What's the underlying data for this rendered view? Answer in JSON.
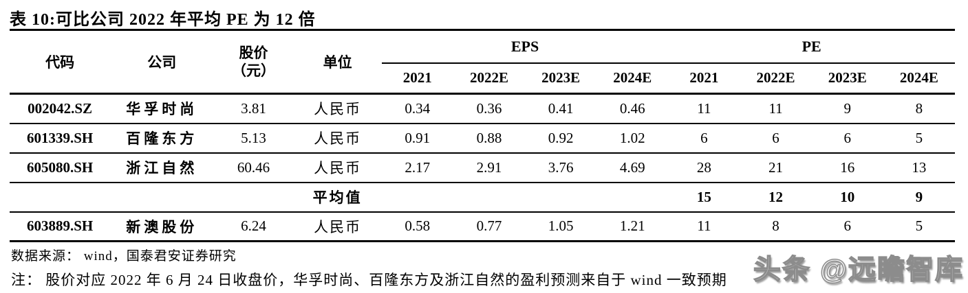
{
  "title": "表 10:可比公司 2022 年平均 PE 为 12 倍",
  "table": {
    "headers": {
      "code": "代码",
      "company": "公司",
      "price_line1": "股价",
      "price_line2": "（元）",
      "unit": "单位",
      "eps_group": "EPS",
      "pe_group": "PE",
      "eps_years": [
        "2021",
        "2022E",
        "2023E",
        "2024E"
      ],
      "pe_years": [
        "2021",
        "2022E",
        "2023E",
        "2024E"
      ]
    },
    "rows": [
      {
        "code": "002042.SZ",
        "company": "华孚时尚",
        "price": "3.81",
        "unit": "人民币",
        "eps": [
          "0.34",
          "0.36",
          "0.41",
          "0.46"
        ],
        "pe": [
          "11",
          "11",
          "9",
          "8"
        ]
      },
      {
        "code": "601339.SH",
        "company": "百隆东方",
        "price": "5.13",
        "unit": "人民币",
        "eps": [
          "0.91",
          "0.88",
          "0.92",
          "1.02"
        ],
        "pe": [
          "6",
          "6",
          "6",
          "5"
        ]
      },
      {
        "code": "605080.SH",
        "company": "浙江自然",
        "price": "60.46",
        "unit": "人民币",
        "eps": [
          "2.17",
          "2.91",
          "3.76",
          "4.69"
        ],
        "pe": [
          "28",
          "21",
          "16",
          "13"
        ]
      },
      {
        "code": "",
        "company": "",
        "price": "",
        "unit": "平均值",
        "eps": [
          "",
          "",
          "",
          ""
        ],
        "pe": [
          "15",
          "12",
          "10",
          "9"
        ]
      },
      {
        "code": "603889.SH",
        "company": "新澳股份",
        "price": "6.24",
        "unit": "人民币",
        "eps": [
          "0.58",
          "0.77",
          "1.05",
          "1.21"
        ],
        "pe": [
          "11",
          "8",
          "6",
          "5"
        ]
      }
    ]
  },
  "footer": {
    "source": "数据来源： wind，国泰君安证券研究",
    "note": "注： 股价对应 2022 年 6 月 24 日收盘价，华孚时尚、百隆东方及浙江自然的盈利预测来自于 wind 一致预期"
  },
  "watermark": "头条 @远瞻智库",
  "colors": {
    "text": "#000000",
    "background": "#ffffff",
    "watermark_gray": "#8c8c8c"
  }
}
